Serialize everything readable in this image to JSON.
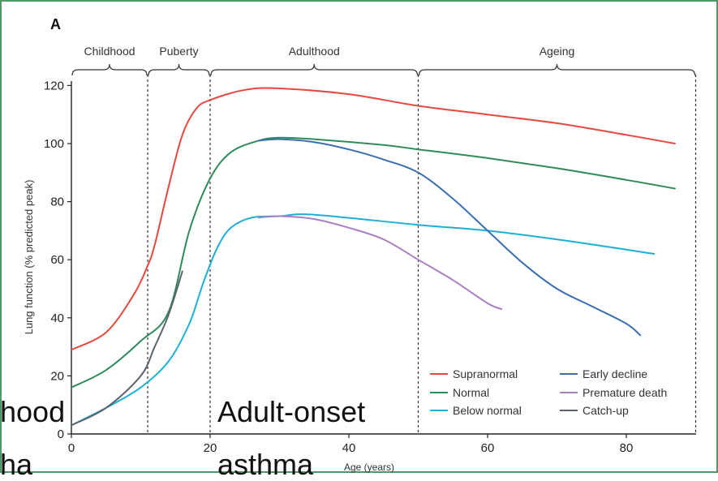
{
  "chart_data": {
    "type": "line",
    "panel_label": "A",
    "xlabel": "Age (years)",
    "ylabel": "Lung function (% predicted peak)",
    "xlim": [
      0,
      90
    ],
    "ylim": [
      0,
      120
    ],
    "x_ticks": [
      "0",
      "20",
      "40",
      "60",
      "80"
    ],
    "y_ticks": [
      "0",
      "20",
      "40",
      "60",
      "80",
      "100",
      "120"
    ],
    "phases": [
      {
        "label": "Childhood",
        "start": 0,
        "end": 11
      },
      {
        "label": "Puberty",
        "start": 11,
        "end": 20
      },
      {
        "label": "Adulthood",
        "start": 20,
        "end": 50
      },
      {
        "label": "Ageing",
        "start": 50,
        "end": 90
      }
    ],
    "legend_position": "bottom-right",
    "series": [
      {
        "name": "Supranormal",
        "color": "#e8473d",
        "points": [
          [
            0,
            29
          ],
          [
            5,
            35
          ],
          [
            9,
            48
          ],
          [
            11,
            58
          ],
          [
            12,
            65
          ],
          [
            14,
            85
          ],
          [
            16,
            103
          ],
          [
            18,
            112
          ],
          [
            20,
            115
          ],
          [
            25,
            118.5
          ],
          [
            30,
            119
          ],
          [
            40,
            117
          ],
          [
            50,
            113
          ],
          [
            60,
            110
          ],
          [
            70,
            107
          ],
          [
            80,
            103
          ],
          [
            87,
            100
          ]
        ]
      },
      {
        "name": "Normal",
        "color": "#2e8b57",
        "points": [
          [
            0,
            16
          ],
          [
            5,
            22
          ],
          [
            10,
            32
          ],
          [
            14,
            42
          ],
          [
            17,
            70
          ],
          [
            20,
            88
          ],
          [
            23,
            97
          ],
          [
            27,
            101
          ],
          [
            30,
            102
          ],
          [
            35,
            101.5
          ],
          [
            45,
            99.5
          ],
          [
            50,
            98
          ],
          [
            60,
            95
          ],
          [
            70,
            91.5
          ],
          [
            80,
            87.5
          ],
          [
            87,
            84.5
          ]
        ]
      },
      {
        "name": "Below normal",
        "color": "#1cb0d6",
        "points": [
          [
            0,
            3
          ],
          [
            5,
            9
          ],
          [
            10,
            16
          ],
          [
            14,
            25
          ],
          [
            17,
            38
          ],
          [
            19,
            52
          ],
          [
            21,
            64
          ],
          [
            23,
            71
          ],
          [
            26,
            74.5
          ],
          [
            30,
            75
          ],
          [
            35,
            75.5
          ],
          [
            50,
            72
          ],
          [
            60,
            70
          ],
          [
            70,
            67
          ],
          [
            80,
            63.5
          ],
          [
            84,
            62
          ]
        ]
      },
      {
        "name": "Early decline",
        "color": "#3a6eb0",
        "points": [
          [
            27,
            101
          ],
          [
            30,
            101.5
          ],
          [
            35,
            100.5
          ],
          [
            40,
            98
          ],
          [
            45,
            94.5
          ],
          [
            50,
            90
          ],
          [
            55,
            81
          ],
          [
            60,
            70
          ],
          [
            65,
            59
          ],
          [
            70,
            50
          ],
          [
            75,
            44
          ],
          [
            80,
            38
          ],
          [
            82,
            34
          ]
        ]
      },
      {
        "name": "Premature death",
        "color": "#a97fc4",
        "points": [
          [
            27,
            74.5
          ],
          [
            30,
            75
          ],
          [
            35,
            74
          ],
          [
            40,
            71
          ],
          [
            45,
            67
          ],
          [
            50,
            60
          ],
          [
            55,
            53
          ],
          [
            60,
            45
          ],
          [
            62,
            43
          ]
        ]
      },
      {
        "name": "Catch-up",
        "color": "#5a6270",
        "points": [
          [
            0,
            3
          ],
          [
            5,
            9
          ],
          [
            10,
            20
          ],
          [
            12,
            30
          ],
          [
            14,
            41
          ],
          [
            16,
            56
          ]
        ]
      }
    ]
  },
  "overlay": {
    "left_line1": "hood",
    "left_line2": "ha",
    "right_line1": "Adult-onset",
    "right_line2": "asthma"
  }
}
